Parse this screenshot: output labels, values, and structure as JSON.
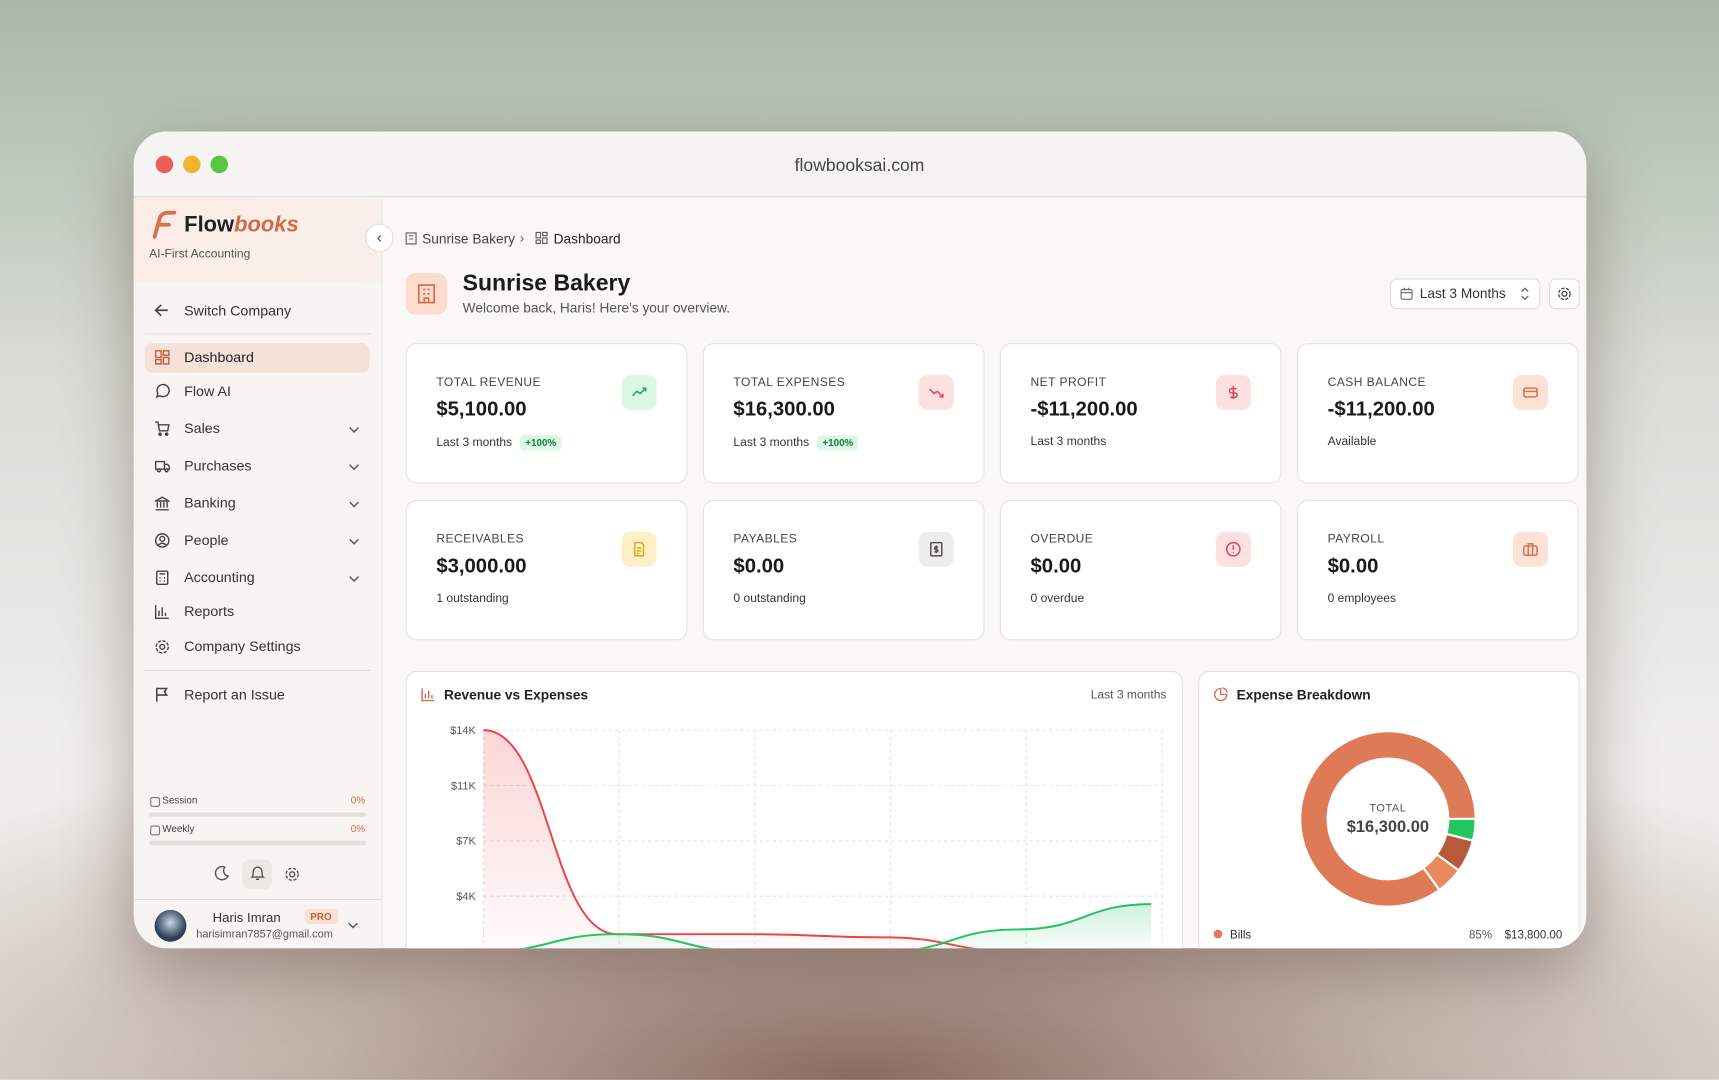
{
  "browser": {
    "url": "flowbooksai.com"
  },
  "sidebar": {
    "brand": {
      "name_start": "Flow",
      "name_end": "books",
      "tagline": "AI-First Accounting"
    },
    "switch_company": "Switch Company",
    "nav": [
      {
        "label": "Dashboard",
        "expandable": false,
        "active": true
      },
      {
        "label": "Flow AI",
        "expandable": false,
        "active": false
      },
      {
        "label": "Sales",
        "expandable": true,
        "active": false
      },
      {
        "label": "Purchases",
        "expandable": true,
        "active": false
      },
      {
        "label": "Banking",
        "expandable": true,
        "active": false
      },
      {
        "label": "People",
        "expandable": true,
        "active": false
      },
      {
        "label": "Accounting",
        "expandable": true,
        "active": false
      },
      {
        "label": "Reports",
        "expandable": false,
        "active": false
      },
      {
        "label": "Company Settings",
        "expandable": false,
        "active": false
      }
    ],
    "report_issue": "Report an Issue",
    "usage": [
      {
        "label": "Session",
        "value": "0%"
      },
      {
        "label": "Weekly",
        "value": "0%"
      }
    ],
    "user": {
      "name": "Haris Imran",
      "badge": "PRO",
      "email": "harisimran7857@gmail.com"
    }
  },
  "header": {
    "breadcrumb": [
      "Sunrise Bakery",
      "Dashboard"
    ],
    "title": "Sunrise Bakery",
    "subtitle": "Welcome back, Haris! Here's your overview.",
    "range": "Last 3 Months"
  },
  "cards": [
    {
      "label": "TOTAL REVENUE",
      "value": "$5,100.00",
      "note": "Last 3 months",
      "badge": "+100%"
    },
    {
      "label": "TOTAL EXPENSES",
      "value": "$16,300.00",
      "note": "Last 3 months",
      "badge": "+100%"
    },
    {
      "label": "NET PROFIT",
      "value": "-$11,200.00",
      "note": "Last 3 months"
    },
    {
      "label": "CASH BALANCE",
      "value": "-$11,200.00",
      "note": "Available"
    },
    {
      "label": "RECEIVABLES",
      "value": "$3,000.00",
      "note": "1 outstanding"
    },
    {
      "label": "PAYABLES",
      "value": "$0.00",
      "note": "0 outstanding"
    },
    {
      "label": "OVERDUE",
      "value": "$0.00",
      "note": "0 overdue"
    },
    {
      "label": "PAYROLL",
      "value": "$0.00",
      "note": "0 employees"
    }
  ],
  "chart_data": [
    {
      "type": "line",
      "title": "Revenue vs Expenses",
      "subtitle": "Last 3 months",
      "categories": [
        null,
        null,
        null,
        null,
        null,
        null
      ],
      "series": [
        {
          "color": "#ef4444",
          "values": [
            14000,
            1100,
            1100,
            900,
            0,
            0
          ]
        },
        {
          "color": "#22c55e",
          "values": [
            0,
            1100,
            0,
            0,
            1400,
            3000
          ]
        }
      ],
      "ylim": [
        0,
        14000
      ],
      "yticks": [
        {
          "value": 14000,
          "label": "$14K"
        },
        {
          "value": 10500,
          "label": "$11K"
        },
        {
          "value": 7000,
          "label": "$7K"
        },
        {
          "value": 3500,
          "label": "$4K"
        }
      ],
      "grid": true
    },
    {
      "type": "pie",
      "title": "Expense Breakdown",
      "center_label": "TOTAL",
      "center_value": "$16,300.00",
      "categories": [
        "Bills",
        null,
        null,
        null
      ],
      "values": [
        85,
        4,
        6,
        5
      ],
      "value_labels": [
        "85%",
        null,
        null,
        null
      ],
      "amounts": [
        "$13,800.00",
        null,
        null,
        null
      ],
      "colors": [
        "#de7a56",
        "#22c55e",
        "#b65a3b",
        "#e8895e"
      ]
    }
  ]
}
